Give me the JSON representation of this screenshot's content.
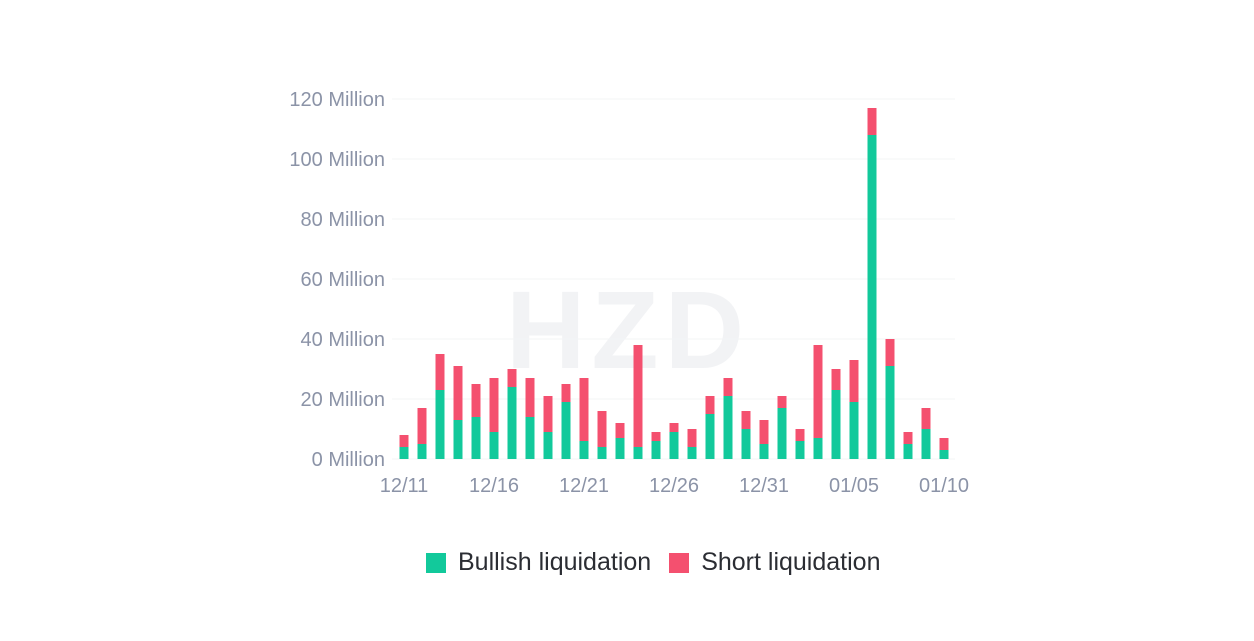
{
  "chart_data": {
    "type": "bar",
    "stacked": true,
    "watermark": "HZD",
    "x_tick_labels": [
      "12/11",
      "12/16",
      "12/21",
      "12/26",
      "12/31",
      "01/05",
      "01/10"
    ],
    "y_tick_labels": [
      "0 Million",
      "20 Million",
      "40 Million",
      "60 Million",
      "80 Million",
      "100 Million",
      "120 Million"
    ],
    "y_ticks": [
      0,
      20,
      40,
      60,
      80,
      100,
      120
    ],
    "ylim": [
      0,
      120
    ],
    "grid": true,
    "legend_position": "bottom",
    "categories": [
      "12/11",
      "12/12",
      "12/13",
      "12/14",
      "12/15",
      "12/16",
      "12/17",
      "12/18",
      "12/19",
      "12/20",
      "12/21",
      "12/22",
      "12/23",
      "12/24",
      "12/25",
      "12/26",
      "12/27",
      "12/28",
      "12/29",
      "12/30",
      "12/31",
      "01/01",
      "01/02",
      "01/03",
      "01/04",
      "01/05",
      "01/06",
      "01/07",
      "01/08",
      "01/09",
      "01/10"
    ],
    "series": [
      {
        "name": "Bullish liquidation",
        "color": "#12c99b",
        "values": [
          4,
          5,
          23,
          13,
          14,
          9,
          24,
          14,
          9,
          19,
          6,
          4,
          7,
          4,
          6,
          9,
          4,
          15,
          21,
          10,
          5,
          17,
          6,
          7,
          23,
          19,
          108,
          31,
          5,
          10,
          3
        ]
      },
      {
        "name": "Short liquidation",
        "color": "#f4506f",
        "values": [
          4,
          12,
          12,
          18,
          11,
          18,
          6,
          13,
          12,
          6,
          21,
          12,
          5,
          34,
          3,
          3,
          6,
          6,
          6,
          6,
          8,
          4,
          4,
          31,
          7,
          14,
          9,
          9,
          4,
          7,
          4
        ]
      }
    ]
  }
}
